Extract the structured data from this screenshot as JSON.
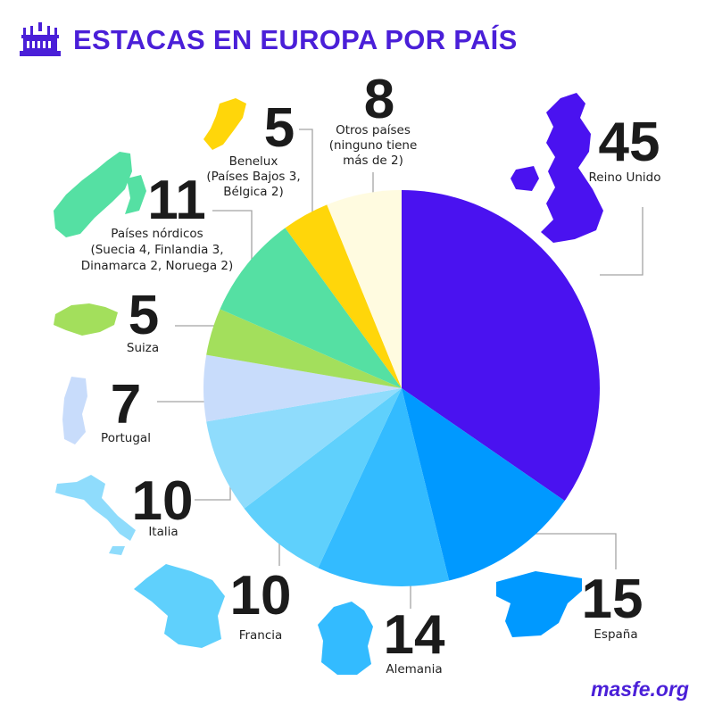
{
  "header": {
    "title": "ESTACAS EN EUROPA POR PAÍS",
    "icon": "temple-icon"
  },
  "footer": {
    "site": "masfe.org"
  },
  "colors": {
    "accent": "#4a1fd8"
  },
  "chart_data": {
    "type": "pie",
    "title": "ESTACAS EN EUROPA POR PAÍS",
    "slices": [
      {
        "value": 45,
        "value_text": "45",
        "label_lines": [
          "Reino Unido"
        ],
        "color": "#4a12f0"
      },
      {
        "value": 15,
        "value_text": "15",
        "label_lines": [
          "España"
        ],
        "color": "#0099ff"
      },
      {
        "value": 14,
        "value_text": "14",
        "label_lines": [
          "Alemania"
        ],
        "color": "#33bbff"
      },
      {
        "value": 10,
        "value_text": "10",
        "label_lines": [
          "Francia"
        ],
        "color": "#5fd0fc"
      },
      {
        "value": 10,
        "value_text": "10",
        "label_lines": [
          "Italia"
        ],
        "color": "#8fdcfc"
      },
      {
        "value": 7,
        "value_text": "7",
        "label_lines": [
          "Portugal"
        ],
        "color": "#c8dcfb"
      },
      {
        "value": 5,
        "value_text": "5",
        "label_lines": [
          "Suiza"
        ],
        "color": "#a3df5c"
      },
      {
        "value": 11,
        "value_text": "11",
        "label_lines": [
          "Países nórdicos",
          "(Suecia 4, Finlandia 3,",
          "Dinamarca 2, Noruega 2)"
        ],
        "color": "#55e0a3"
      },
      {
        "value": 5,
        "value_text": "5",
        "label_lines": [
          "Benelux",
          "(Países Bajos 3,",
          "Bélgica 2)"
        ],
        "color": "#ffd60a"
      },
      {
        "value": 8,
        "value_text": "8",
        "label_lines": [
          "Otros países",
          "(ninguno tiene",
          "más de 2)"
        ],
        "color": "#fffbe0"
      }
    ]
  }
}
